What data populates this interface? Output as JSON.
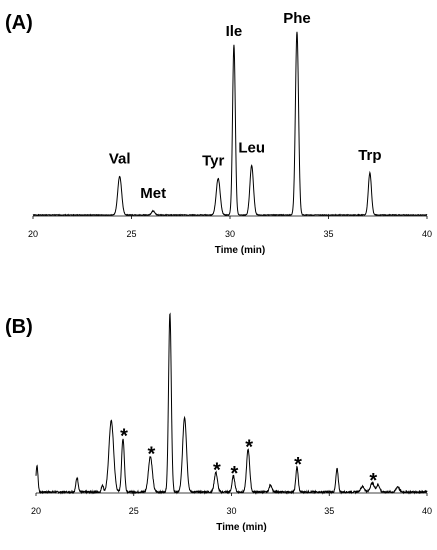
{
  "chart_data": [
    {
      "type": "line",
      "panel_label": "(A)",
      "xlabel": "Time (min)",
      "ylabel": "",
      "xlim": [
        20,
        40
      ],
      "xticks": [
        "20",
        "25",
        "30",
        "35",
        "40"
      ],
      "ylim": [
        0,
        1.0
      ],
      "grid": false,
      "peaks": [
        {
          "x": 24.4,
          "height": 0.21,
          "width": 0.1
        },
        {
          "x": 26.1,
          "height": 0.022,
          "width": 0.08
        },
        {
          "x": 29.4,
          "height": 0.2,
          "width": 0.1
        },
        {
          "x": 30.2,
          "height": 0.93,
          "width": 0.07
        },
        {
          "x": 31.1,
          "height": 0.27,
          "width": 0.09
        },
        {
          "x": 33.4,
          "height": 1.0,
          "width": 0.08
        },
        {
          "x": 37.1,
          "height": 0.23,
          "width": 0.08
        }
      ],
      "annotations": [
        {
          "text": "Val",
          "x": 24.4
        },
        {
          "text": "Met",
          "x": 26.1
        },
        {
          "text": "Tyr",
          "x": 29.4
        },
        {
          "text": "Ile",
          "x": 30.2
        },
        {
          "text": "Leu",
          "x": 31.1
        },
        {
          "text": "Phe",
          "x": 33.4
        },
        {
          "text": "Trp",
          "x": 37.1
        }
      ]
    },
    {
      "type": "line",
      "panel_label": "(B)",
      "xlabel": "Time (min)",
      "ylabel": "",
      "xlim": [
        20,
        40
      ],
      "xticks": [
        "20",
        "25",
        "30",
        "35",
        "40"
      ],
      "ylim": [
        0,
        1.0
      ],
      "grid": false,
      "peaks": [
        {
          "x": 20.05,
          "height": 0.15,
          "width": 0.05
        },
        {
          "x": 22.1,
          "height": 0.08,
          "width": 0.06
        },
        {
          "x": 23.4,
          "height": 0.04,
          "width": 0.05
        },
        {
          "x": 23.85,
          "height": 0.4,
          "width": 0.12
        },
        {
          "x": 24.45,
          "height": 0.3,
          "width": 0.07
        },
        {
          "x": 25.85,
          "height": 0.2,
          "width": 0.1
        },
        {
          "x": 26.85,
          "height": 1.0,
          "width": 0.07
        },
        {
          "x": 27.6,
          "height": 0.42,
          "width": 0.1
        },
        {
          "x": 29.2,
          "height": 0.11,
          "width": 0.08
        },
        {
          "x": 30.1,
          "height": 0.09,
          "width": 0.07
        },
        {
          "x": 30.85,
          "height": 0.24,
          "width": 0.08
        },
        {
          "x": 32.0,
          "height": 0.04,
          "width": 0.07
        },
        {
          "x": 33.35,
          "height": 0.14,
          "width": 0.06
        },
        {
          "x": 35.4,
          "height": 0.13,
          "width": 0.06
        },
        {
          "x": 36.7,
          "height": 0.03,
          "width": 0.1
        },
        {
          "x": 37.2,
          "height": 0.05,
          "width": 0.1
        },
        {
          "x": 37.5,
          "height": 0.04,
          "width": 0.08
        },
        {
          "x": 38.5,
          "height": 0.03,
          "width": 0.08
        }
      ],
      "markers": [
        {
          "text": "*",
          "x": 24.45
        },
        {
          "text": "*",
          "x": 25.85
        },
        {
          "text": "*",
          "x": 29.2
        },
        {
          "text": "*",
          "x": 30.1
        },
        {
          "text": "*",
          "x": 30.85
        },
        {
          "text": "*",
          "x": 33.35
        },
        {
          "text": "*",
          "x": 37.2
        }
      ]
    }
  ]
}
